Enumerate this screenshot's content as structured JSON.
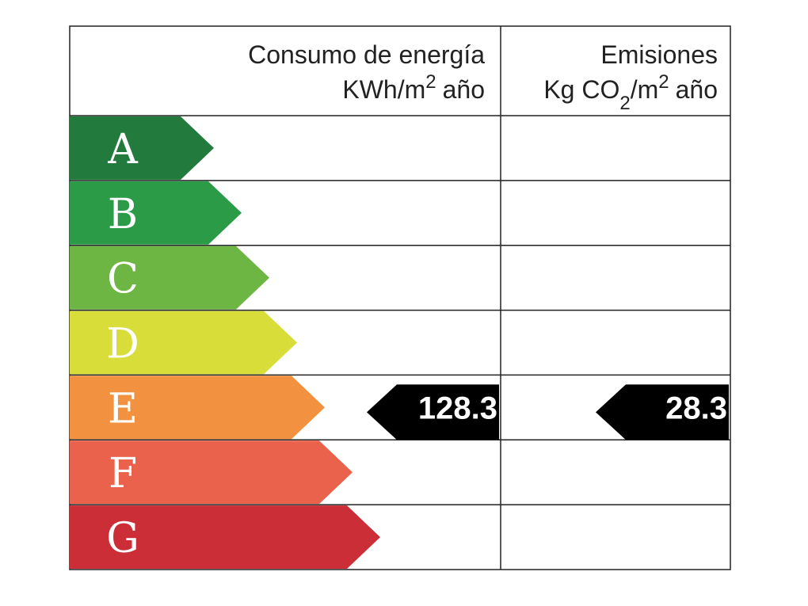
{
  "header": {
    "consumption": {
      "title": "Consumo de energía",
      "unit_prefix": "KWh/m",
      "unit_sup": "2",
      "unit_suffix": "año"
    },
    "emissions": {
      "title": "Emisiones",
      "unit_prefix": "Kg CO",
      "unit_sub": "2",
      "unit_mid": "/m",
      "unit_sup": "2",
      "unit_suffix": "año"
    }
  },
  "ratings": [
    {
      "letter": "A",
      "color": "#237a3d"
    },
    {
      "letter": "B",
      "color": "#2b9b47"
    },
    {
      "letter": "C",
      "color": "#6db643"
    },
    {
      "letter": "D",
      "color": "#d9dd3a"
    },
    {
      "letter": "E",
      "color": "#f29240"
    },
    {
      "letter": "F",
      "color": "#ea614c"
    },
    {
      "letter": "G",
      "color": "#cc2e37"
    }
  ],
  "results": {
    "consumption": {
      "value": 128.3,
      "rating": "E"
    },
    "emissions": {
      "value": 28.3,
      "rating": "E"
    }
  }
}
